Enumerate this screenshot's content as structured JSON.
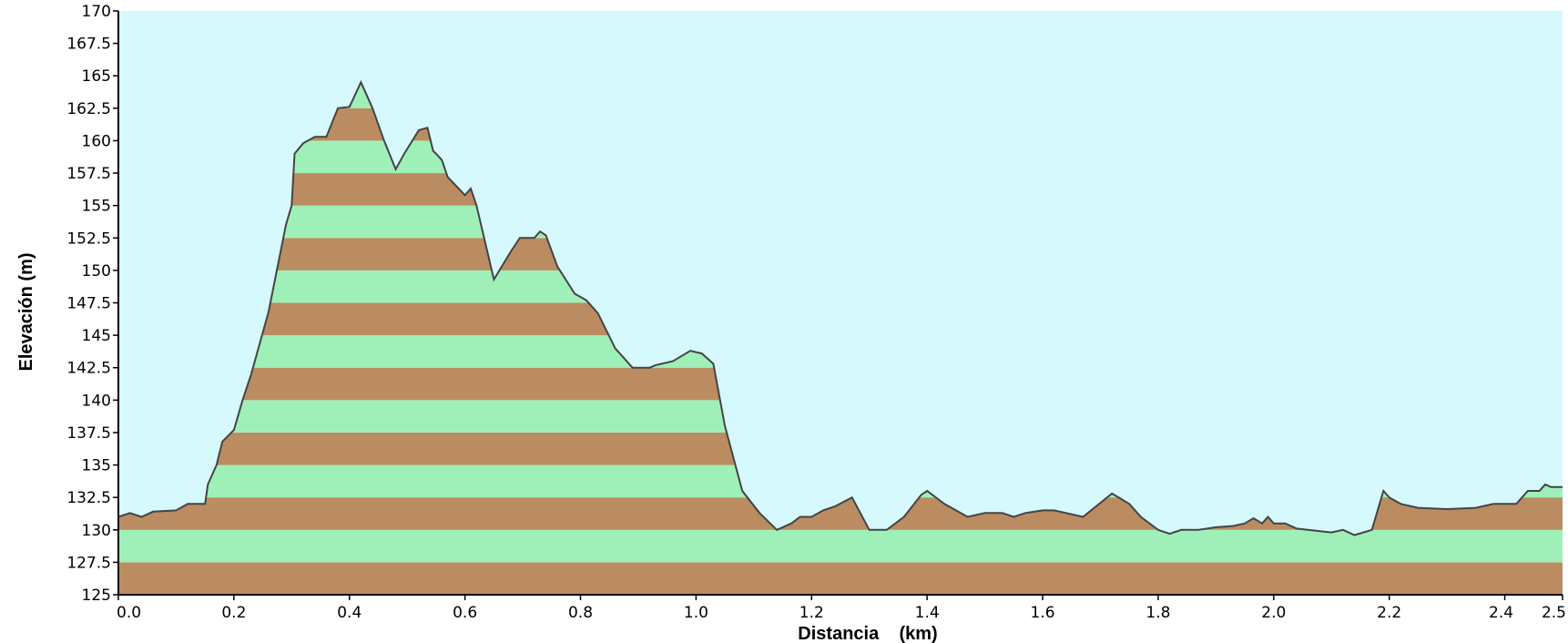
{
  "chart_data": {
    "type": "area",
    "title": "",
    "xlabel": "Distancia    (km)",
    "ylabel": "Elevación (m)",
    "xlim": [
      0.0,
      2.5
    ],
    "ylim": [
      125,
      170
    ],
    "x_ticks": [
      "0.0",
      "0.2",
      "0.4",
      "0.6",
      "0.8",
      "1.0",
      "1.2",
      "1.4",
      "1.6",
      "1.8",
      "2.0",
      "2.2",
      "2.4",
      "2.5"
    ],
    "y_ticks": [
      "125",
      "127.5",
      "130",
      "132.5",
      "135",
      "137.5",
      "140",
      "142.5",
      "145",
      "147.5",
      "150",
      "152.5",
      "155",
      "157.5",
      "160",
      "162.5",
      "165",
      "167.5",
      "170"
    ],
    "band_height": 2.5,
    "colors": {
      "sky": "#d6f9fd",
      "band_green": "#9ff0b8",
      "band_brown": "#bb8c62",
      "outline": "#444444",
      "axis": "#000000"
    },
    "series": [
      {
        "x": [
          0.0,
          0.02,
          0.04,
          0.06,
          0.1,
          0.12,
          0.15,
          0.155,
          0.17,
          0.18,
          0.2,
          0.215,
          0.23,
          0.26,
          0.29,
          0.3,
          0.305,
          0.32,
          0.34,
          0.36,
          0.38,
          0.4,
          0.42,
          0.44,
          0.46,
          0.48,
          0.495,
          0.52,
          0.535,
          0.545,
          0.55,
          0.56,
          0.57,
          0.6,
          0.61,
          0.62,
          0.65,
          0.68,
          0.695,
          0.72,
          0.73,
          0.74,
          0.76,
          0.79,
          0.81,
          0.83,
          0.86,
          0.89,
          0.92,
          0.93,
          0.96,
          0.99,
          1.01,
          1.03,
          1.05,
          1.08,
          1.11,
          1.14,
          1.165,
          1.18,
          1.2,
          1.22,
          1.24,
          1.27,
          1.3,
          1.33,
          1.36,
          1.39,
          1.4,
          1.43,
          1.47,
          1.5,
          1.53,
          1.55,
          1.57,
          1.6,
          1.62,
          1.67,
          1.72,
          1.75,
          1.77,
          1.8,
          1.82,
          1.84,
          1.87,
          1.9,
          1.93,
          1.95,
          1.965,
          1.98,
          1.99,
          2.0,
          2.02,
          2.04,
          2.1,
          2.12,
          2.14,
          2.17,
          2.19,
          2.2,
          2.22,
          2.25,
          2.3,
          2.35,
          2.38,
          2.42,
          2.44,
          2.46,
          2.47,
          2.48,
          2.5
        ],
        "y": [
          131.0,
          131.3,
          131.0,
          131.4,
          131.5,
          132.0,
          132.0,
          133.5,
          135.0,
          136.8,
          137.7,
          140.0,
          142.0,
          146.8,
          153.5,
          155.0,
          159.0,
          159.8,
          160.3,
          160.3,
          162.5,
          162.6,
          164.5,
          162.5,
          160.0,
          157.8,
          159.0,
          160.8,
          161.0,
          159.2,
          159.0,
          158.5,
          157.2,
          155.8,
          156.3,
          155.0,
          149.3,
          151.5,
          152.5,
          152.5,
          153.0,
          152.7,
          150.3,
          148.2,
          147.7,
          146.7,
          144.0,
          142.5,
          142.5,
          142.7,
          143.0,
          143.8,
          143.6,
          142.8,
          138.0,
          133.0,
          131.3,
          130.0,
          130.5,
          131.0,
          131.0,
          131.5,
          131.8,
          132.5,
          130.0,
          130.0,
          131.0,
          132.7,
          133.0,
          132.0,
          131.0,
          131.3,
          131.3,
          131.0,
          131.3,
          131.5,
          131.5,
          131.0,
          132.8,
          132.0,
          131.0,
          130.0,
          129.7,
          130.0,
          130.0,
          130.2,
          130.3,
          130.5,
          130.9,
          130.5,
          131.0,
          130.5,
          130.5,
          130.1,
          129.8,
          130.0,
          129.6,
          130.0,
          133.0,
          132.5,
          132.0,
          131.7,
          131.6,
          131.7,
          132.0,
          132.0,
          133.0,
          133.0,
          133.5,
          133.3,
          133.3
        ]
      }
    ]
  }
}
